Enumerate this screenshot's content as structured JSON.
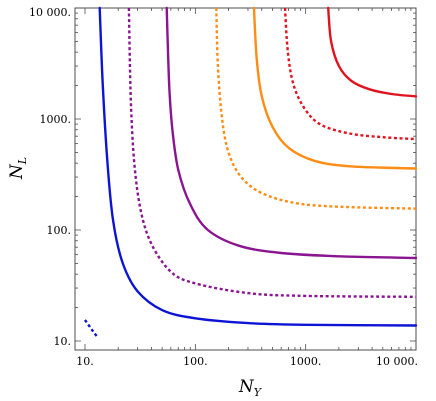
{
  "chart_data": {
    "type": "line",
    "title": "",
    "xlabel": {
      "main": "N",
      "sub": "Y"
    },
    "ylabel": {
      "main": "N",
      "sub": "L"
    },
    "xscale": "log",
    "yscale": "log",
    "xlim": [
      10,
      10000
    ],
    "ylim": [
      10,
      10000
    ],
    "grid": false,
    "legend": "none",
    "x_ticks": [
      "10.",
      "100.",
      "1000.",
      "10 000."
    ],
    "y_ticks": [
      "10.",
      "100.",
      "1000.",
      "10 000."
    ],
    "series": [
      {
        "color": "#0d14d4",
        "dash": "solid",
        "x": [
          13.6,
          14.5,
          16,
          18,
          22,
          30,
          50,
          100,
          300,
          1000,
          10000
        ],
        "y": [
          10000,
          2000,
          400,
          120,
          50,
          28,
          19,
          16,
          14.5,
          14,
          13.8
        ]
      },
      {
        "color": "#0d14d4",
        "dash": "dotted",
        "x": [
          10,
          11,
          12,
          13
        ],
        "y": [
          15.5,
          13.5,
          12,
          10.8
        ]
      },
      {
        "color": "#8a1590",
        "dash": "dotted",
        "x": [
          25,
          26,
          28,
          32,
          40,
          60,
          100,
          300,
          1000,
          10000
        ],
        "y": [
          10000,
          1500,
          400,
          150,
          75,
          42,
          33,
          27,
          25.5,
          25
        ]
      },
      {
        "color": "#8a1590",
        "dash": "solid",
        "x": [
          55,
          58,
          62,
          70,
          90,
          130,
          250,
          600,
          2000,
          10000
        ],
        "y": [
          10000,
          2000,
          800,
          350,
          170,
          100,
          72,
          62,
          58,
          56
        ]
      },
      {
        "color": "#ff8c14",
        "dash": "dotted",
        "x": [
          155,
          160,
          175,
          200,
          260,
          400,
          800,
          2000,
          10000
        ],
        "y": [
          10000,
          3000,
          1000,
          500,
          300,
          215,
          175,
          162,
          156
        ]
      },
      {
        "color": "#ff8c14",
        "dash": "solid",
        "x": [
          340,
          360,
          400,
          500,
          700,
          1200,
          2500,
          10000
        ],
        "y": [
          10000,
          3500,
          1600,
          850,
          550,
          420,
          375,
          358
        ]
      },
      {
        "color": "#e0141e",
        "dash": "dotted",
        "x": [
          650,
          690,
          780,
          1000,
          1400,
          2500,
          5000,
          10000
        ],
        "y": [
          10000,
          4000,
          2000,
          1200,
          880,
          740,
          685,
          660
        ]
      },
      {
        "color": "#e0141e",
        "dash": "solid",
        "x": [
          1600,
          1700,
          2000,
          2600,
          3800,
          6000,
          10000
        ],
        "y": [
          10000,
          5000,
          3000,
          2200,
          1850,
          1680,
          1600
        ]
      }
    ]
  }
}
